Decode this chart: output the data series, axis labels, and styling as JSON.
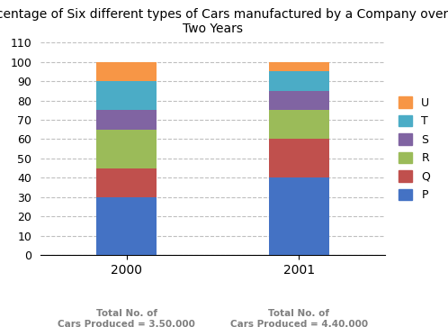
{
  "title": "Percentage of Six different types of Cars manufactured by a Company over\nTwo Years",
  "categories": [
    "2000",
    "2001"
  ],
  "series": {
    "P": [
      30,
      40
    ],
    "Q": [
      15,
      20
    ],
    "R": [
      20,
      15
    ],
    "S": [
      10,
      10
    ],
    "T": [
      15,
      10
    ],
    "U": [
      10,
      5
    ]
  },
  "colors": {
    "P": "#4472C4",
    "Q": "#C0504D",
    "R": "#9BBB59",
    "S": "#8064A2",
    "T": "#4BACC6",
    "U": "#F79646"
  },
  "ylim": [
    0,
    110
  ],
  "yticks": [
    0,
    10,
    20,
    30,
    40,
    50,
    60,
    70,
    80,
    90,
    100,
    110
  ],
  "xlabel_notes": [
    "Total No. of\nCars Produced = 3,50,000",
    "Total No. of\nCars Produced = 4,40,000"
  ],
  "note_color": "#7F7F7F",
  "grid_color": "#BFBFBF",
  "background_color": "#FFFFFF",
  "title_fontsize": 10,
  "tick_fontsize": 9,
  "legend_fontsize": 9
}
